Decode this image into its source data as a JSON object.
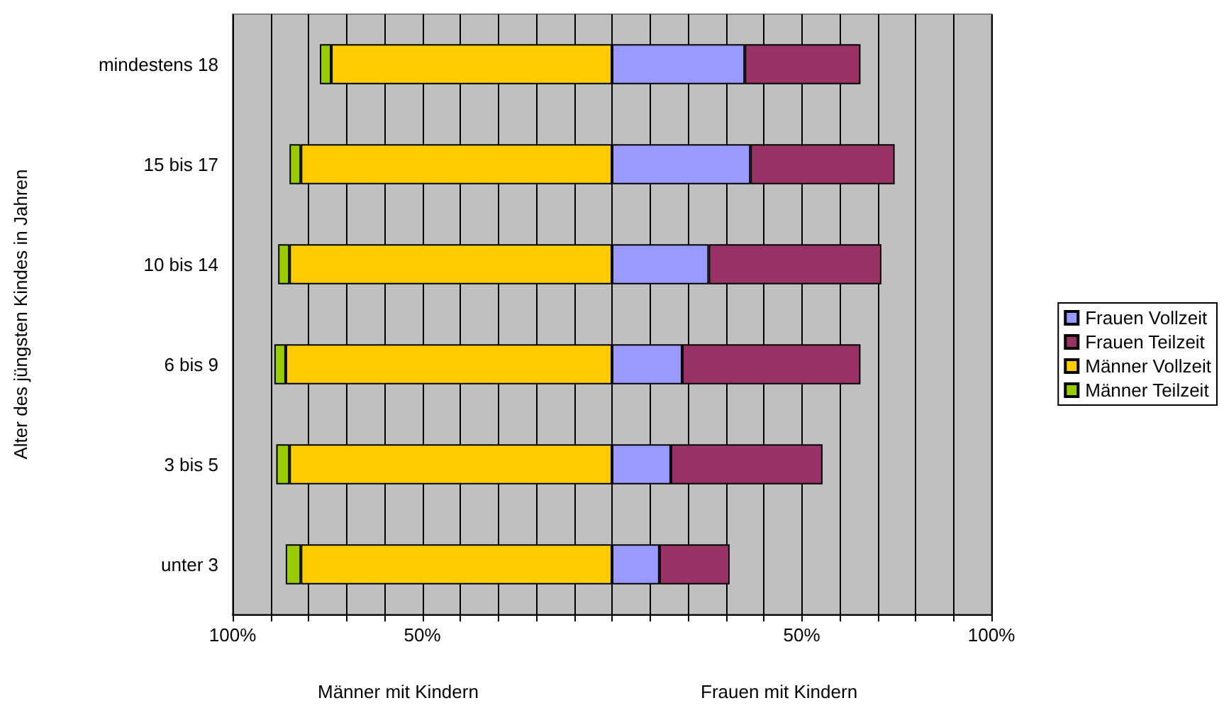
{
  "chart_data": {
    "type": "bar",
    "orientation": "horizontal",
    "stacked": true,
    "ylabel": "Alter des jüngsten Kindes in Jahren",
    "annotations": [
      "Männer mit Kindern",
      "Frauen mit Kindern"
    ],
    "categories": [
      "mindestens 18",
      "15 bis 17",
      "10 bis 14",
      "6 bis 9",
      "3 bis 5",
      "unter 3"
    ],
    "series": [
      {
        "name": "Frauen Vollzeit",
        "color": "#9999ff",
        "values": [
          35,
          36.5,
          25.5,
          18.5,
          15.5,
          12.5
        ]
      },
      {
        "name": "Frauen Teilzeit",
        "color": "#993366",
        "values": [
          30.5,
          38,
          45.5,
          47,
          40,
          18.5
        ]
      },
      {
        "name": "Männer Vollzeit",
        "color": "#ffcc00",
        "values": [
          -74,
          -82,
          -85,
          -86,
          -85,
          -82
        ]
      },
      {
        "name": "Männer Teilzeit",
        "color": "#99cc00",
        "values": [
          -3,
          -3,
          -3,
          -3,
          -3.5,
          -4
        ]
      }
    ],
    "xlim": [
      -100,
      100
    ],
    "xticks": [
      {
        "value": -100,
        "label": "100%"
      },
      {
        "value": -90,
        "label": null
      },
      {
        "value": -80,
        "label": null
      },
      {
        "value": -70,
        "label": null
      },
      {
        "value": -60,
        "label": null
      },
      {
        "value": -50,
        "label": "50%"
      },
      {
        "value": -40,
        "label": null
      },
      {
        "value": -30,
        "label": null
      },
      {
        "value": -20,
        "label": null
      },
      {
        "value": -10,
        "label": null
      },
      {
        "value": 0,
        "label": null
      },
      {
        "value": 10,
        "label": null
      },
      {
        "value": 20,
        "label": null
      },
      {
        "value": 30,
        "label": null
      },
      {
        "value": 40,
        "label": null
      },
      {
        "value": 50,
        "label": "50%"
      },
      {
        "value": 60,
        "label": null
      },
      {
        "value": 70,
        "label": null
      },
      {
        "value": 80,
        "label": null
      },
      {
        "value": 90,
        "label": null
      },
      {
        "value": 100,
        "label": "100%"
      }
    ],
    "grid": "x",
    "legend": "right"
  }
}
